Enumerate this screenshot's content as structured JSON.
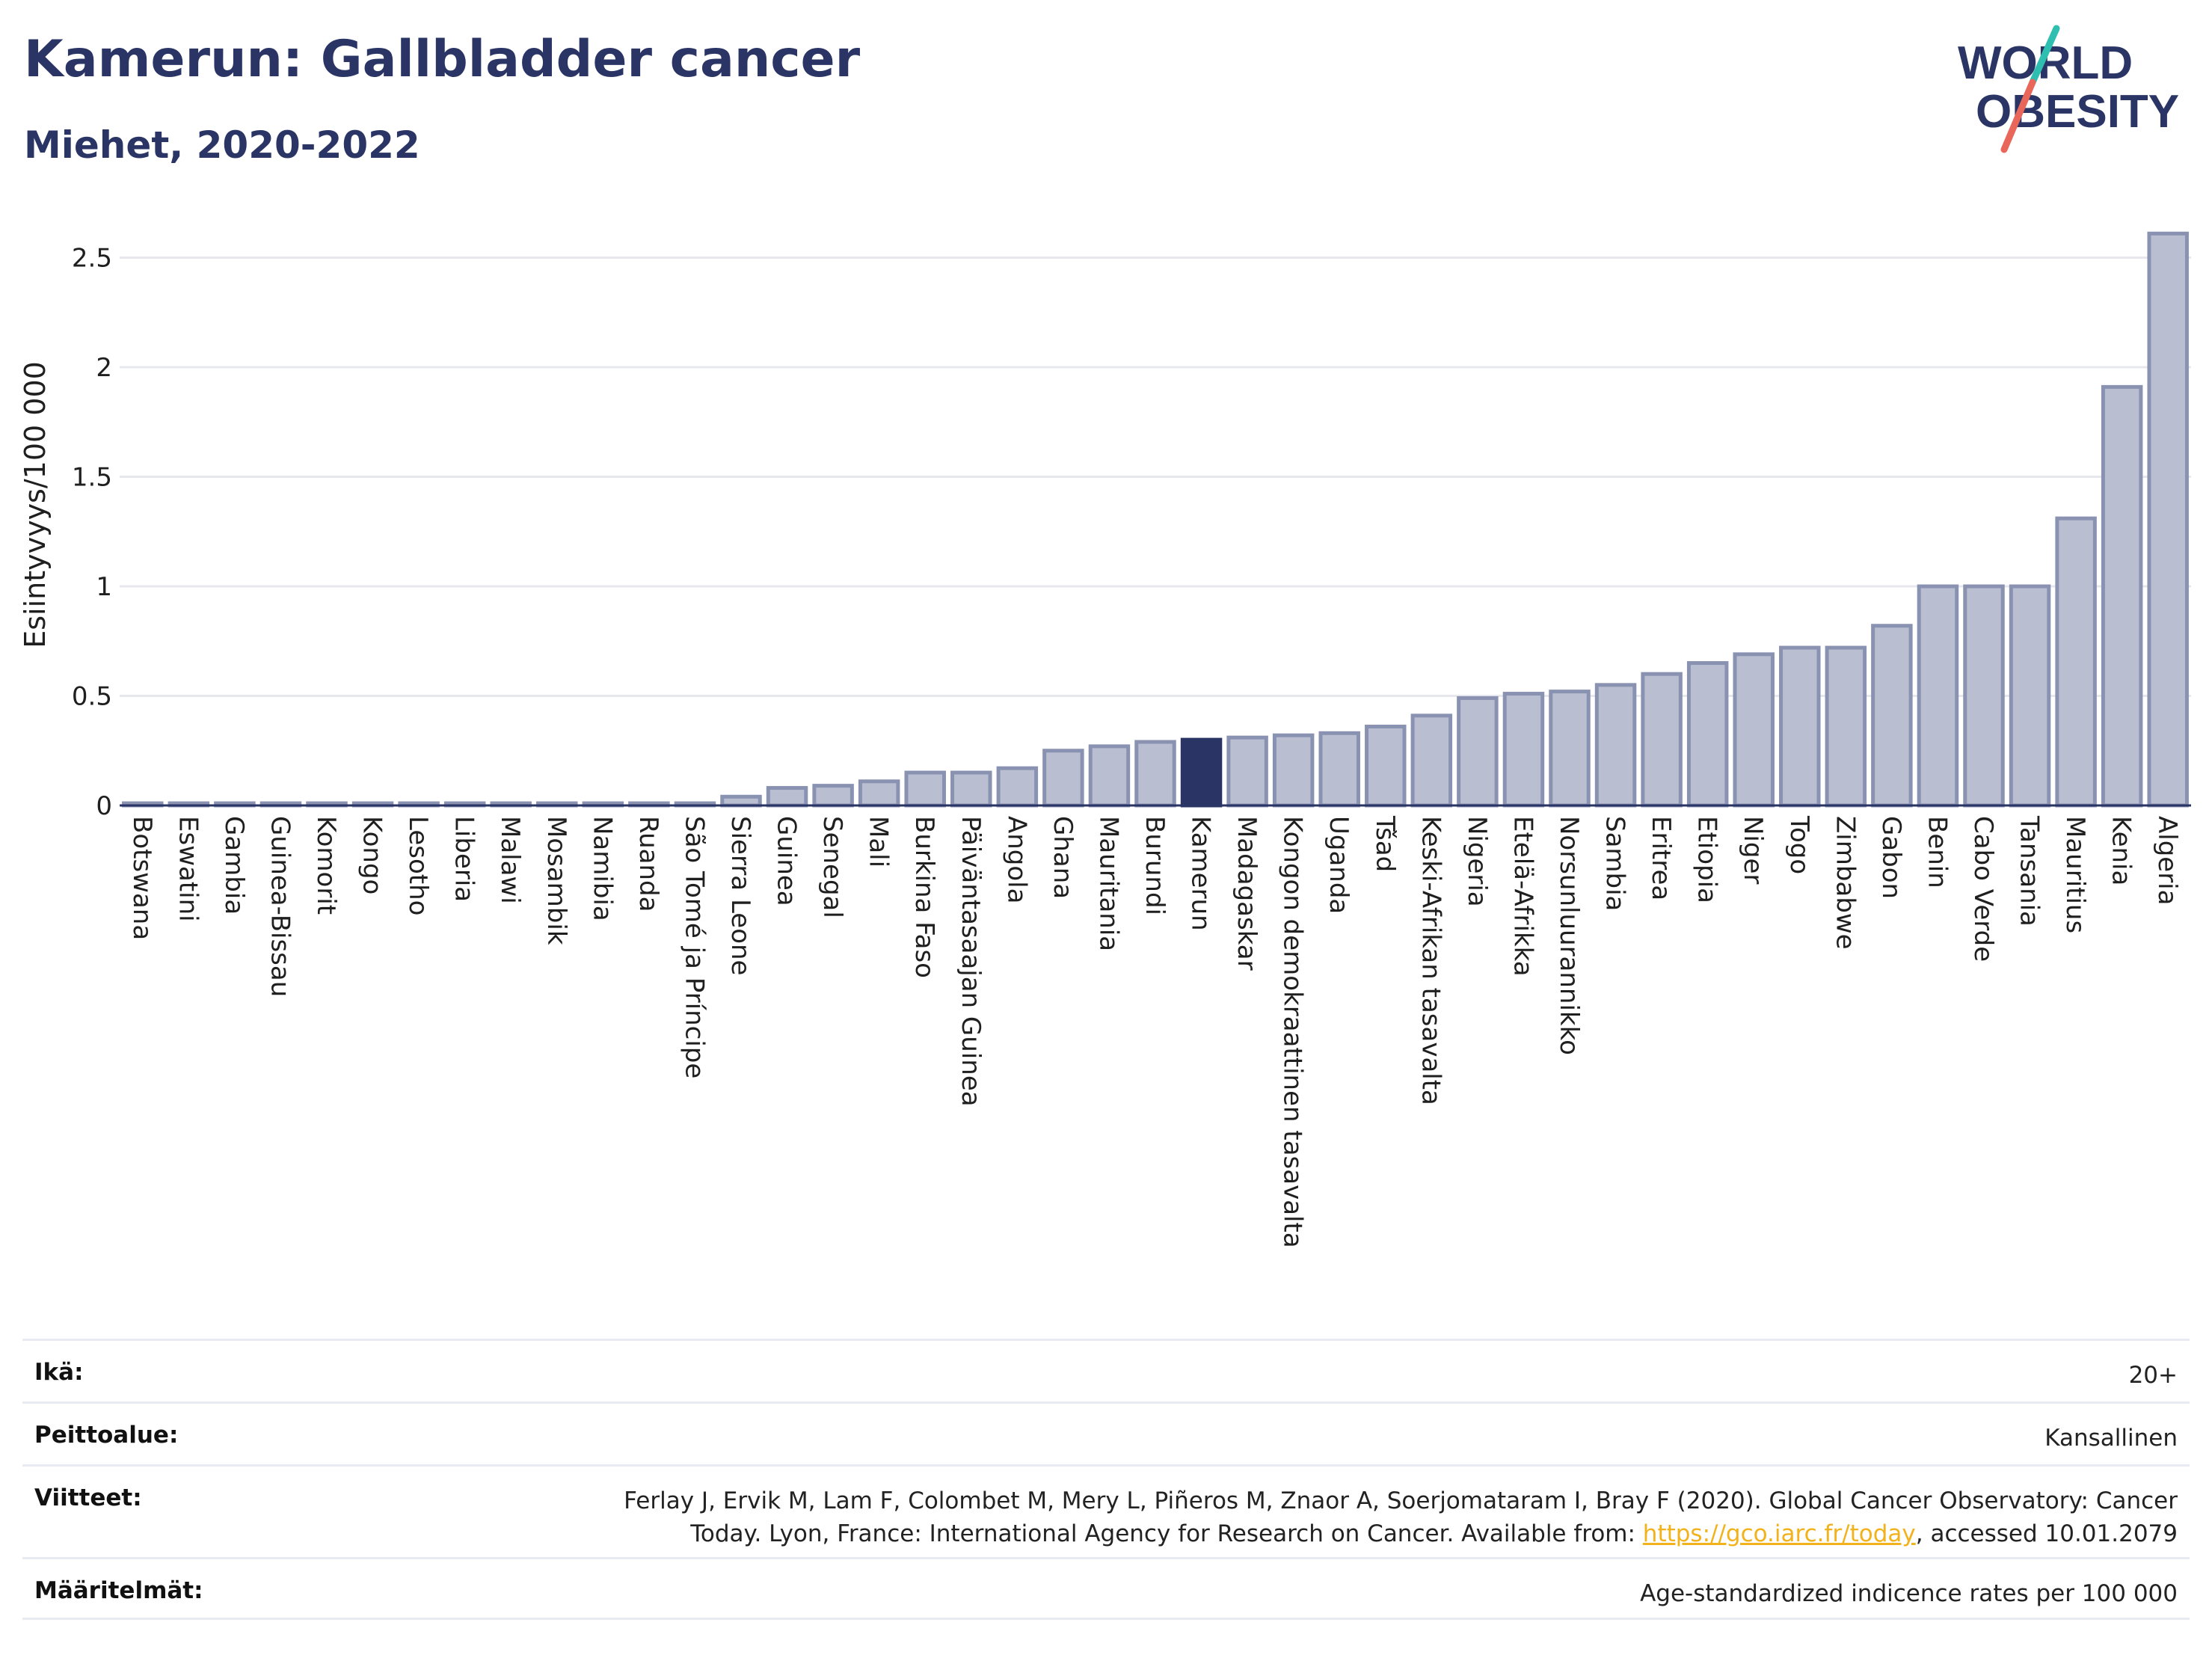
{
  "header": {
    "title": "Kamerun: Gallbladder cancer",
    "subtitle": "Miehet, 2020-2022",
    "logo_line1": "WORLD",
    "logo_line2": "OBESITY"
  },
  "colors": {
    "bar": "#b9bfd1",
    "bar_border": "#8a92b2",
    "highlight": "#2a3566",
    "grid": "#e6e8ee",
    "logo_teal": "#2ebfb0",
    "logo_red": "#e8675a"
  },
  "chart_data": {
    "type": "bar",
    "ylabel": "Esiintyvyys/100 000",
    "ylim": [
      0,
      2.8
    ],
    "yticks": [
      0,
      0.5,
      1,
      1.5,
      2,
      2.5
    ],
    "ytick_labels": [
      "0",
      "0.5",
      "1",
      "1.5",
      "2",
      "2.5"
    ],
    "grid": true,
    "highlight": "Kamerun",
    "categories": [
      "Botswana",
      "Eswatini",
      "Gambia",
      "Guinea-Bissau",
      "Komorit",
      "Kongo",
      "Lesotho",
      "Liberia",
      "Malawi",
      "Mosambik",
      "Namibia",
      "Ruanda",
      "São Tomé ja Príncipe",
      "Sierra Leone",
      "Guinea",
      "Senegal",
      "Mali",
      "Burkina Faso",
      "Päiväntasaajan Guinea",
      "Angola",
      "Ghana",
      "Mauritania",
      "Burundi",
      "Kamerun",
      "Madagaskar",
      "Kongon demokraattinen tasavalta",
      "Uganda",
      "Tšad",
      "Keski-Afrikan tasavalta",
      "Nigeria",
      "Etelä-Afrikka",
      "Norsunluurannikko",
      "Sambia",
      "Eritrea",
      "Etiopia",
      "Niger",
      "Togo",
      "Zimbabwe",
      "Gabon",
      "Benin",
      "Cabo Verde",
      "Tansania",
      "Mauritius",
      "Kenia",
      "Algeria"
    ],
    "values": [
      0.01,
      0.01,
      0.01,
      0.01,
      0.01,
      0.01,
      0.01,
      0.01,
      0.01,
      0.01,
      0.01,
      0.01,
      0.01,
      0.04,
      0.08,
      0.09,
      0.11,
      0.15,
      0.15,
      0.17,
      0.25,
      0.27,
      0.29,
      0.3,
      0.31,
      0.32,
      0.33,
      0.36,
      0.41,
      0.49,
      0.51,
      0.52,
      0.55,
      0.6,
      0.65,
      0.69,
      0.72,
      0.72,
      0.82,
      1.0,
      1.0,
      1.0,
      1.31,
      1.91,
      2.61
    ]
  },
  "footer": {
    "rows": [
      {
        "label": "Ikä:",
        "value": "20+"
      },
      {
        "label": "Peittoalue:",
        "value": "Kansallinen"
      },
      {
        "label": "Viitteet:",
        "value_line1": "Ferlay J, Ervik M, Lam F, Colombet M, Mery L, Piñeros M, Znaor A, Soerjomataram I, Bray F (2020). Global Cancer Observatory: Cancer",
        "value_line2_pre": "Today. Lyon, France: International Agency for Research on Cancer. Available from: ",
        "link": "https://gco.iarc.fr/today",
        "value_line2_post": ", accessed 10.01.2079"
      },
      {
        "label": "Määritelmät:",
        "value": "Age-standardized indicence rates per 100 000"
      }
    ]
  }
}
